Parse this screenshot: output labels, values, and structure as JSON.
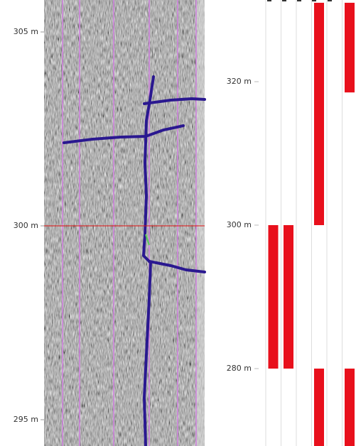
{
  "scan_view": {
    "ticks": [
      {
        "value": 305,
        "label": "305 m"
      },
      {
        "value": 300,
        "label": "300 m"
      },
      {
        "value": 295,
        "label": "295 m"
      }
    ],
    "marker_depth": 300
  },
  "interval_view": {
    "ticks": [
      {
        "value": 320,
        "label": "320 m"
      },
      {
        "value": 300,
        "label": "300 m"
      },
      {
        "value": 280,
        "label": "280 m"
      }
    ],
    "columns": [
      [
        {
          "from": 300,
          "to": 280
        }
      ],
      [
        {
          "from": 300,
          "to": 280
        }
      ],
      [],
      [
        {
          "from": 331,
          "to": 300
        },
        {
          "from": 280,
          "to": 269
        }
      ],
      [],
      [
        {
          "from": 331,
          "to": 318.5
        },
        {
          "from": 280,
          "to": 269
        }
      ]
    ]
  }
}
